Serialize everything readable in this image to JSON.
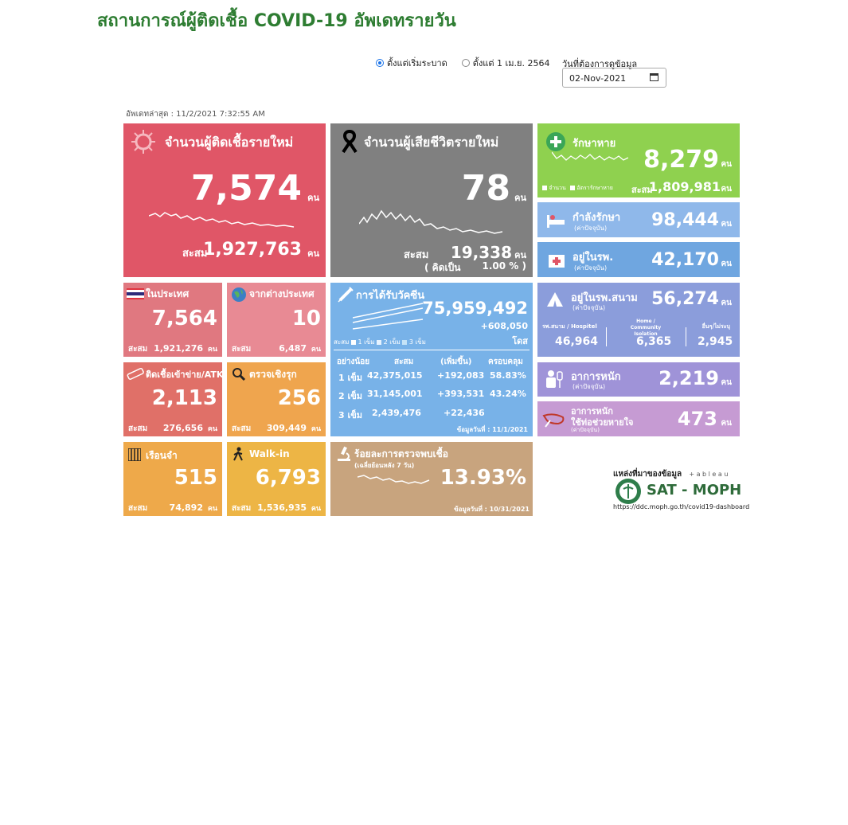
{
  "header": {
    "title": "สถานการณ์ผู้ติดเชื้อ COVID-19 อัพเดทรายวัน"
  },
  "filters": {
    "radio1": "ตั้งแต่เริ่มระบาด",
    "radio2": "ตั้งแต่ 1 เม.ย. 2564",
    "date_label": "วันที่ต้องการดูข้อมูล",
    "date_value": "02-Nov-2021"
  },
  "updated": "อัพเดทล่าสุด : 11/2/2021 7:32:55 AM",
  "unit": "คน",
  "cum": "สะสม",
  "new_cases": {
    "label": "จำนวนผู้ติดเชื้อรายใหม่",
    "value": "7,574",
    "cum": "1,927,763"
  },
  "new_deaths": {
    "label": "จำนวนผู้เสียชีวิตรายใหม่",
    "value": "78",
    "cum": "19,338",
    "pct_label": "( คิดเป็น",
    "pct": "1.00 % )"
  },
  "recovered": {
    "label": "รักษาหาย",
    "value": "8,279",
    "cum": "1,809,981",
    "leg1": "จำนวน",
    "leg2": "อัตรารักษาหาย"
  },
  "treating": {
    "label": "กำลังรักษา",
    "sub": "(ค่าปัจจุบัน)",
    "value": "98,444"
  },
  "in_hospital": {
    "label": "อยู่ในรพ.",
    "sub": "(ค่าปัจจุบัน)",
    "value": "42,170"
  },
  "domestic": {
    "label": "ในประเทศ",
    "value": "7,564",
    "cum": "1,921,276"
  },
  "abroad": {
    "label": "จากต่างประเทศ",
    "value": "10",
    "cum": "6,487"
  },
  "prison_atk": {
    "label": "ติดเชื้อเข้าข่าย/ATK",
    "value": "2,113",
    "cum": "276,656"
  },
  "active_search": {
    "label": "ตรวจเชิงรุก",
    "value": "256",
    "cum": "309,449"
  },
  "prison": {
    "label": "เรือนจำ",
    "value": "515",
    "cum": "74,892"
  },
  "walkin": {
    "label": "Walk-in",
    "value": "6,793",
    "cum": "1,536,935"
  },
  "vaccine": {
    "label": "การได้รับวัคซีน",
    "total": "75,959,492",
    "today": "+608,050",
    "unit": "โดส",
    "legend": [
      "สะสม",
      "1 เข็ม",
      "2 เข็ม",
      "3 เข็ม"
    ],
    "headers": [
      "อย่างน้อย",
      "สะสม",
      "(เพิ่มขึ้น)",
      "ครอบคลุม"
    ],
    "rows": [
      {
        "dose": "1 เข็ม",
        "cum": "42,375,015",
        "inc": "+192,083",
        "cov": "58.83%"
      },
      {
        "dose": "2 เข็ม",
        "cum": "31,145,001",
        "inc": "+393,531",
        "cov": "43.24%"
      },
      {
        "dose": "3 เข็ม",
        "cum": "2,439,476",
        "inc": "+22,436",
        "cov": ""
      }
    ],
    "asof": "ข้อมูลวันที่ : 11/1/2021"
  },
  "field_hosp": {
    "label": "อยู่ในรพ.สนาม",
    "sub": "(ค่าปัจจุบัน)",
    "value": "56,274",
    "cols": [
      {
        "label": "รพ.สนาม / Hospitel",
        "value": "46,964"
      },
      {
        "label": "Home / Community Isolation",
        "value": "6,365"
      },
      {
        "label": "อื่นๆ/ไม่ระบุ",
        "value": "2,945"
      }
    ]
  },
  "severe": {
    "label": "อาการหนัก",
    "sub": "(ค่าปัจจุบัน)",
    "value": "2,219"
  },
  "ventilator": {
    "label1": "อาการหนัก",
    "label2": "ใช้ท่อช่วยหายใจ",
    "sub": "(ค่าปัจจุบัน)",
    "value": "473"
  },
  "positivity": {
    "label": "ร้อยละการตรวจพบเชื้อ",
    "sub": "(เฉลี่ยย้อนหลัง 7 วัน)",
    "value": "13.93%",
    "asof": "ข้อมูลวันที่ : 10/31/2021"
  },
  "source": {
    "label": "แหล่งที่มาของข้อมูล",
    "tableau": "+ a b l e a u",
    "logo": "SAT - MOPH",
    "url": "https://ddc.moph.go.th/covid19-dashboard"
  },
  "colors": {
    "title": "#2e7d32",
    "red": "#e05667",
    "gray": "#808080",
    "green": "#8fd14f"
  },
  "icons": [
    "virus-icon",
    "ribbon-icon",
    "cross-icon",
    "bed-icon",
    "hospital-icon",
    "flag-icon",
    "globe-icon",
    "test-kit-icon",
    "magnifier-icon",
    "syringe-icon",
    "tent-icon",
    "patient-icon",
    "ventilator-icon",
    "prison-icon",
    "walk-icon",
    "microscope-icon"
  ]
}
